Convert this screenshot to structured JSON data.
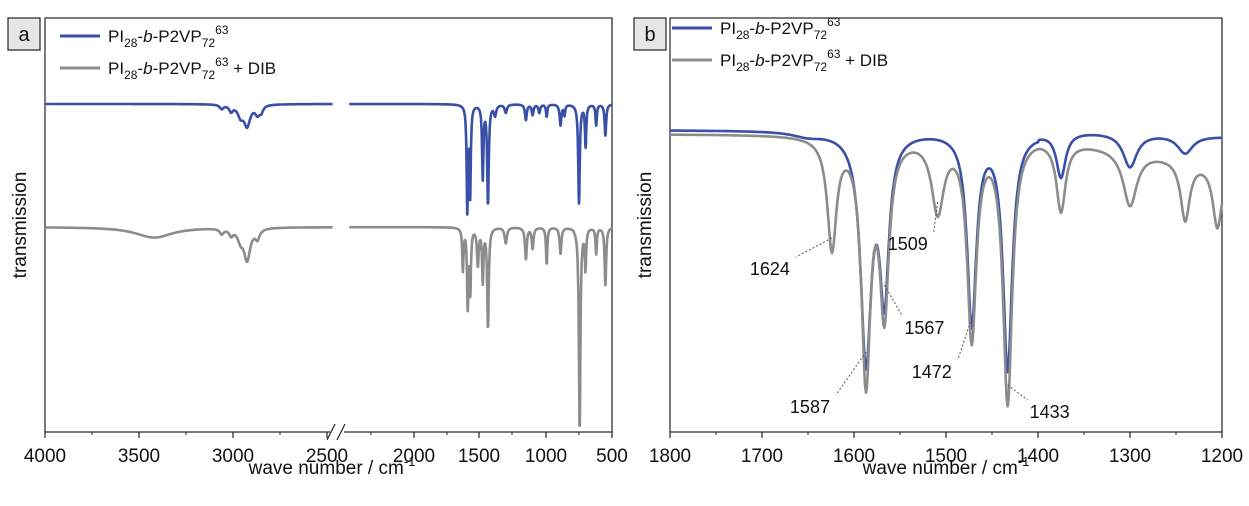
{
  "figure": {
    "ylabel": "transmission",
    "xlabel_a": "wave number  / cm",
    "xlabel_b": "wave number  / cm",
    "xlabel_sup": "-1"
  },
  "colors": {
    "pure": "#3a4fa8",
    "dib": "#8c8c8c"
  },
  "chart_data": [
    {
      "type": "line",
      "panel_label": "a",
      "xlabel": "wave number / cm-1",
      "ylabel": "transmission",
      "xlim": [
        4000,
        500
      ],
      "x_axis_break": [
        2450,
        2350
      ],
      "xticks": [
        "4000",
        "3500",
        "3000",
        "2500",
        "2000",
        "1500",
        "1000",
        "500"
      ],
      "legend": [
        {
          "base": "PI",
          "s1": "28",
          "mid1": "-",
          "italic": "b",
          "mid2": "-P2VP",
          "s2": "72",
          "sup": "63",
          "suffix": "",
          "color": "#3a4fa8"
        },
        {
          "base": "PI",
          "s1": "28",
          "mid1": "-",
          "italic": "b",
          "mid2": "-P2VP",
          "s2": "72",
          "sup": "63",
          "suffix": " + DIB",
          "color": "#8c8c8c"
        }
      ],
      "series": [
        {
          "name": "PI28-b-P2VP72 63",
          "baseline": 0.0,
          "bands": [
            [
              3060,
              0.04,
              12
            ],
            [
              3010,
              0.06,
              12
            ],
            [
              2960,
              0.1,
              18
            ],
            [
              2925,
              0.2,
              20
            ],
            [
              2870,
              0.08,
              14
            ],
            [
              2850,
              0.06,
              12
            ],
            [
              1590,
              1.0,
              6
            ],
            [
              1568,
              0.85,
              6
            ],
            [
              1472,
              0.7,
              6
            ],
            [
              1433,
              0.95,
              7
            ],
            [
              1380,
              0.1,
              10
            ],
            [
              1300,
              0.08,
              10
            ],
            [
              1150,
              0.15,
              8
            ],
            [
              1100,
              0.1,
              8
            ],
            [
              1050,
              0.08,
              8
            ],
            [
              995,
              0.12,
              6
            ],
            [
              890,
              0.2,
              8
            ],
            [
              860,
              0.1,
              6
            ],
            [
              750,
              0.95,
              7
            ],
            [
              700,
              0.4,
              6
            ],
            [
              620,
              0.2,
              6
            ],
            [
              550,
              0.3,
              7
            ]
          ]
        },
        {
          "name": "PI28-b-P2VP72 63 + DIB",
          "baseline": -1.0,
          "bands": [
            [
              3420,
              0.1,
              120
            ],
            [
              3060,
              0.05,
              12
            ],
            [
              3010,
              0.06,
              12
            ],
            [
              2960,
              0.1,
              18
            ],
            [
              2925,
              0.3,
              20
            ],
            [
              2870,
              0.09,
              14
            ],
            [
              1624,
              0.4,
              6
            ],
            [
              1587,
              0.75,
              6
            ],
            [
              1567,
              0.6,
              6
            ],
            [
              1509,
              0.35,
              8
            ],
            [
              1472,
              0.5,
              6
            ],
            [
              1433,
              0.95,
              7
            ],
            [
              1300,
              0.15,
              10
            ],
            [
              1150,
              0.3,
              8
            ],
            [
              1100,
              0.2,
              8
            ],
            [
              995,
              0.35,
              6
            ],
            [
              890,
              0.25,
              8
            ],
            [
              745,
              1.6,
              7
            ],
            [
              700,
              0.35,
              6
            ],
            [
              620,
              0.25,
              6
            ],
            [
              550,
              0.55,
              7
            ]
          ]
        }
      ]
    },
    {
      "type": "line",
      "panel_label": "b",
      "xlabel": "wave number / cm-1",
      "ylabel": "transmission",
      "xlim": [
        1800,
        1200
      ],
      "xticks": [
        "1800",
        "1700",
        "1600",
        "1500",
        "1400",
        "1300",
        "1200"
      ],
      "legend": [
        {
          "base": "PI",
          "s1": "28",
          "mid1": "-",
          "italic": "b",
          "mid2": "-P2VP",
          "s2": "72",
          "sup": "63",
          "suffix": "",
          "color": "#3a4fa8"
        },
        {
          "base": "PI",
          "s1": "28",
          "mid1": "-",
          "italic": "b",
          "mid2": "-P2VP",
          "s2": "72",
          "sup": "63",
          "suffix": " + DIB",
          "color": "#8c8c8c"
        }
      ],
      "annotations": [
        "1624",
        "1587",
        "1567",
        "1509",
        "1472",
        "1433"
      ],
      "series": [
        {
          "name": "PI28-b-P2VP72 63",
          "baseline": 0.0,
          "bands": [
            [
              1587,
              1.0,
              7
            ],
            [
              1567,
              0.7,
              6
            ],
            [
              1472,
              0.85,
              6
            ],
            [
              1433,
              1.05,
              6
            ],
            [
              1375,
              0.2,
              6
            ],
            [
              1300,
              0.15,
              9
            ],
            [
              1240,
              0.08,
              10
            ],
            [
              1650,
              0.02,
              20
            ]
          ]
        },
        {
          "name": "PI28-b-P2VP72 63 + DIB",
          "baseline": 0.0,
          "bands": [
            [
              1624,
              0.44,
              6
            ],
            [
              1587,
              0.96,
              6
            ],
            [
              1567,
              0.68,
              6
            ],
            [
              1509,
              0.29,
              8
            ],
            [
              1472,
              0.8,
              6
            ],
            [
              1433,
              1.06,
              6
            ],
            [
              1375,
              0.28,
              6
            ],
            [
              1300,
              0.22,
              9
            ],
            [
              1240,
              0.24,
              6
            ],
            [
              1205,
              0.25,
              6
            ]
          ]
        }
      ]
    }
  ]
}
